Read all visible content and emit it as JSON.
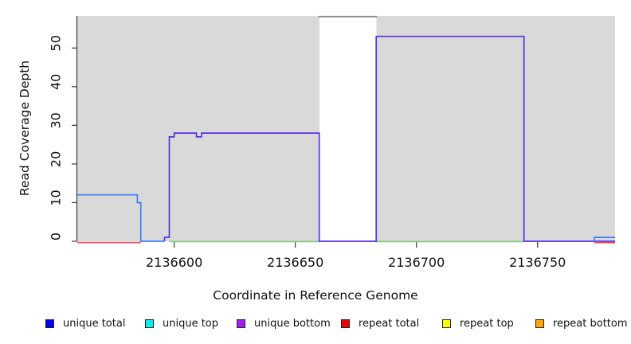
{
  "chart_data": {
    "type": "line",
    "title": "",
    "xlabel": "Coordinate in Reference Genome",
    "ylabel": "Read Coverage Depth",
    "xlim": [
      2136560,
      2136782
    ],
    "ylim": [
      0,
      58.3
    ],
    "x_ticks": [
      2136600,
      2136650,
      2136700,
      2136750
    ],
    "y_ticks": [
      0,
      10,
      20,
      30,
      40,
      50
    ],
    "grid": false,
    "plot_background": "#ffffff",
    "band_color": "#d9d9d9",
    "background_bands": [
      {
        "from": 2136560,
        "to": 2136660
      },
      {
        "from": 2136683.5,
        "to": 2136782
      }
    ],
    "offscale_marker": {
      "from": 2136659.5,
      "to": 2136683.8,
      "color": "#8f8f8f",
      "note": "coverage clipped at top of plot"
    },
    "series": [
      {
        "id": "repeat-total-left",
        "name": "repeat total",
        "color": "#e84f62",
        "points": [
          [
            2136560,
            0
          ],
          [
            2136586.2,
            0
          ]
        ]
      },
      {
        "id": "baseline-green",
        "name": "baseline",
        "color": "#7ccd7c",
        "segments": [
          [
            [
              2136598,
              0
            ],
            [
              2136660,
              0
            ]
          ],
          [
            [
              2136683.4,
              0
            ],
            [
              2136744.4,
              0
            ]
          ]
        ]
      },
      {
        "id": "unique-total-left",
        "name": "unique total",
        "color": "#3f7df2",
        "points": [
          [
            2136560,
            12
          ],
          [
            2136584.8,
            12
          ],
          [
            2136584.8,
            10
          ],
          [
            2136586.2,
            10
          ],
          [
            2136586.2,
            0
          ],
          [
            2136596,
            0
          ]
        ]
      },
      {
        "id": "unique-bottom",
        "name": "unique bottom",
        "color": "#5a2fe2",
        "points": [
          [
            2136596,
            0
          ],
          [
            2136596,
            1
          ],
          [
            2136598,
            1
          ],
          [
            2136598,
            27
          ],
          [
            2136600,
            27
          ],
          [
            2136600,
            28
          ],
          [
            2136609.2,
            28
          ],
          [
            2136609.2,
            27
          ],
          [
            2136611.3,
            27
          ],
          [
            2136611.3,
            28
          ],
          [
            2136659.9,
            28
          ],
          [
            2136659.9,
            0
          ],
          [
            2136683.4,
            0
          ],
          [
            2136683.4,
            53
          ],
          [
            2136744.4,
            53
          ],
          [
            2136744.4,
            0
          ],
          [
            2136782,
            0
          ]
        ]
      },
      {
        "id": "repeat-total-right",
        "name": "repeat total",
        "color": "#e84f62",
        "points": [
          [
            2136773.4,
            0
          ],
          [
            2136782,
            0
          ]
        ]
      },
      {
        "id": "unique-total-right",
        "name": "unique total",
        "color": "#3f7df2",
        "points": [
          [
            2136773.4,
            0
          ],
          [
            2136773.4,
            1
          ],
          [
            2136782,
            1
          ]
        ]
      }
    ],
    "legend_position": "bottom",
    "legend": [
      {
        "label": "unique total",
        "color": "#0000ee"
      },
      {
        "label": "unique top",
        "color": "#00eeee"
      },
      {
        "label": "unique bottom",
        "color": "#a020f0"
      },
      {
        "label": "repeat total",
        "color": "#ee0000"
      },
      {
        "label": "repeat top",
        "color": "#ffff00"
      },
      {
        "label": "repeat bottom",
        "color": "#ffa500"
      }
    ]
  }
}
